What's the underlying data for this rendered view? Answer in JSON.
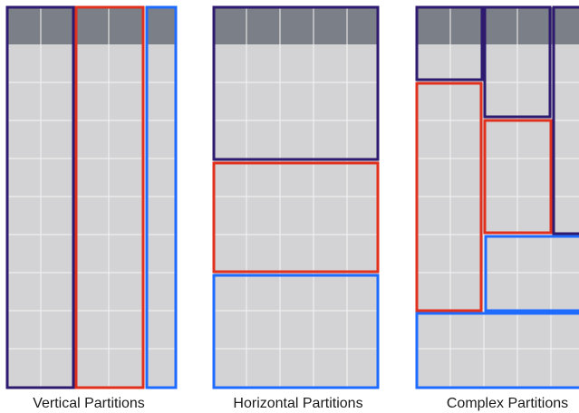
{
  "captions": {
    "vertical": "Vertical Partitions",
    "horizontal": "Horizontal Partitions",
    "complex": "Complex Partitions"
  },
  "colors": {
    "table_fill": "#d3d3d5",
    "header_fill": "#7b8088",
    "grid_line": "#f5f5f5",
    "partition_navy": "#2e1a6e",
    "partition_red": "#e0301e",
    "partition_blue": "#1f6bff"
  }
}
